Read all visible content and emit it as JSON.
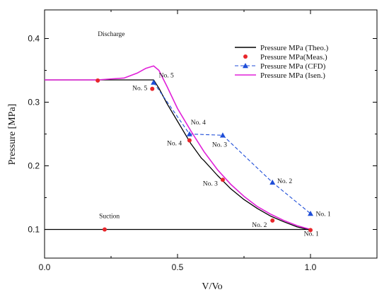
{
  "chart_data": {
    "type": "line",
    "xlabel": "V/Vo",
    "ylabel": "Pressure [MPa]",
    "xlim": [
      0.0,
      1.25
    ],
    "ylim": [
      0.055,
      0.445
    ],
    "xticks": [
      "0.0",
      "0.5",
      "1.0"
    ],
    "yticks": [
      "0.1",
      "0.2",
      "0.3",
      "0.4"
    ],
    "grid": false,
    "legend_position": "top-right",
    "series": [
      {
        "name": "Pressure MPa (Theo.)",
        "style": "solid-line",
        "color": "#000000",
        "x": [
          0.0,
          0.41,
          0.43,
          0.46,
          0.5,
          0.55,
          0.59,
          0.6,
          0.65,
          0.7,
          0.75,
          0.8,
          0.85,
          0.9,
          0.95,
          1.0
        ],
        "y": [
          0.335,
          0.335,
          0.322,
          0.298,
          0.27,
          0.235,
          0.212,
          0.208,
          0.185,
          0.164,
          0.147,
          0.133,
          0.121,
          0.112,
          0.104,
          0.099
        ]
      },
      {
        "name": "Pressure MPa(Meas.)",
        "style": "markers",
        "color": "#e8262b",
        "x": [
          0.2,
          0.405,
          0.545,
          0.67,
          0.857,
          1.0
        ],
        "y": [
          0.334,
          0.321,
          0.24,
          0.178,
          0.114,
          0.099
        ]
      },
      {
        "name": "Pressure MPa (CFD)",
        "style": "dashed-line-triangles",
        "color": "#1f4ed8",
        "x": [
          0.41,
          0.545,
          0.67,
          0.857,
          1.0
        ],
        "y": [
          0.331,
          0.25,
          0.248,
          0.174,
          0.125
        ]
      },
      {
        "name": "Pressure MPa (Isen.)",
        "style": "solid-line",
        "color": "#e020d8",
        "x": [
          0.0,
          0.2,
          0.3,
          0.35,
          0.38,
          0.41,
          0.43,
          0.46,
          0.5,
          0.55,
          0.6,
          0.65,
          0.7,
          0.75,
          0.8,
          0.85,
          0.9,
          0.95,
          1.0
        ],
        "y": [
          0.335,
          0.335,
          0.338,
          0.346,
          0.353,
          0.357,
          0.35,
          0.325,
          0.29,
          0.255,
          0.222,
          0.194,
          0.171,
          0.152,
          0.136,
          0.124,
          0.114,
          0.106,
          0.1
        ]
      },
      {
        "name": "",
        "style": "solid-line",
        "color": "#000000",
        "x": [
          0.0,
          1.0
        ],
        "y": [
          0.1,
          0.1
        ]
      },
      {
        "name": "",
        "style": "markers",
        "color": "#e8262b",
        "x": [
          0.226
        ],
        "y": [
          0.1
        ]
      }
    ],
    "annotations": [
      {
        "text": "Discharge",
        "x": 0.2,
        "y": 0.404
      },
      {
        "text": "Suction",
        "x": 0.205,
        "y": 0.118
      },
      {
        "text": "No. 5",
        "x": 0.43,
        "y": 0.339
      },
      {
        "text": "No. 5",
        "x": 0.33,
        "y": 0.319
      },
      {
        "text": "No. 4",
        "x": 0.55,
        "y": 0.265
      },
      {
        "text": "No. 4",
        "x": 0.46,
        "y": 0.232
      },
      {
        "text": "No. 3",
        "x": 0.63,
        "y": 0.23
      },
      {
        "text": "No. 3",
        "x": 0.595,
        "y": 0.169
      },
      {
        "text": "No. 2",
        "x": 0.875,
        "y": 0.173
      },
      {
        "text": "No. 2",
        "x": 0.78,
        "y": 0.104
      },
      {
        "text": "No. 1",
        "x": 1.02,
        "y": 0.121
      },
      {
        "text": "No. 1",
        "x": 0.975,
        "y": 0.09
      }
    ]
  }
}
